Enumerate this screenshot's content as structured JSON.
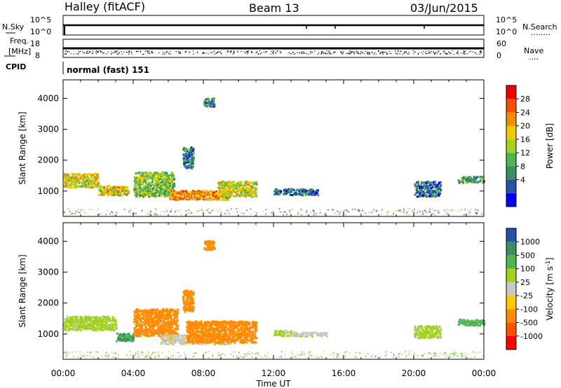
{
  "header": {
    "station": "Halley (fitACF)",
    "beam": "Beam 13",
    "date": "03/Jun/2015"
  },
  "strips": {
    "nsky_label": "N.Sky",
    "nsearch_label": "N.Search",
    "nsearch_line": "........",
    "sky_ticks": [
      "10^5",
      "10^0"
    ],
    "freq_label_1": "Freq.",
    "freq_label_2": "[MHz]",
    "freq_ticks": [
      "18",
      "8"
    ],
    "nave_label": "Nave",
    "nave_line": "....",
    "nave_ticks": [
      "60",
      "0"
    ],
    "cpid_label": "CPID",
    "cpid_text": "normal (fast) 151"
  },
  "chart_data": [
    {
      "type": "heatmap",
      "parameter": "Power",
      "ylabel": "Slant Range [km]",
      "ylim": [
        180,
        4600
      ],
      "yticks": [
        "1000",
        "2000",
        "3000",
        "4000"
      ],
      "colorbar": {
        "label": "Power [dB]",
        "ticks": [
          "28",
          "24",
          "20",
          "16",
          "12",
          "8",
          "4"
        ],
        "colors": [
          "#0000ff",
          "#2850a8",
          "#3c8c64",
          "#50b450",
          "#a0d21e",
          "#f0c800",
          "#f08c00",
          "#f05000",
          "#f00000"
        ]
      },
      "echo_regions": [
        {
          "t0": 0.0,
          "t1": 2.0,
          "r0": 1100,
          "r1": 1550,
          "power_db": 20
        },
        {
          "t0": 2.0,
          "t1": 3.7,
          "r0": 850,
          "r1": 1150,
          "power_db": 22
        },
        {
          "t0": 4.0,
          "t1": 6.3,
          "r0": 800,
          "r1": 1600,
          "power_db": 16
        },
        {
          "t0": 6.0,
          "t1": 9.5,
          "r0": 700,
          "r1": 1000,
          "power_db": 26
        },
        {
          "t0": 8.8,
          "t1": 11.0,
          "r0": 800,
          "r1": 1300,
          "power_db": 20
        },
        {
          "t0": 6.8,
          "t1": 7.4,
          "r0": 1700,
          "r1": 2400,
          "power_db": 10
        },
        {
          "t0": 8.0,
          "t1": 8.6,
          "r0": 3700,
          "r1": 4000,
          "power_db": 10
        },
        {
          "t0": 12.0,
          "t1": 14.5,
          "r0": 850,
          "r1": 1050,
          "power_db": 8
        },
        {
          "t0": 20.0,
          "t1": 21.5,
          "r0": 800,
          "r1": 1300,
          "power_db": 8
        },
        {
          "t0": 22.5,
          "t1": 24.0,
          "r0": 1250,
          "r1": 1450,
          "power_db": 12
        }
      ]
    },
    {
      "type": "heatmap",
      "parameter": "Velocity",
      "ylabel": "Slant Range [km]",
      "ylim": [
        180,
        4600
      ],
      "yticks": [
        "1000",
        "2000",
        "3000",
        "4000"
      ],
      "colorbar": {
        "label": "Velocity [m s^-1]",
        "ticks": [
          "1000",
          "500",
          "100",
          "25",
          "-25",
          "-100",
          "-500",
          "-1000"
        ],
        "colors": [
          "#ff0000",
          "#ff5000",
          "#ff8c00",
          "#ffc800",
          "#c8c8c8",
          "#a0d21e",
          "#50b450",
          "#3c8c64",
          "#2850a8"
        ]
      },
      "xlabel": "Time UT",
      "xticks": [
        "00:00",
        "04:00",
        "08:00",
        "12:00",
        "16:00",
        "20:00",
        "00:00"
      ],
      "xlim_hours": [
        0,
        24
      ],
      "echo_regions": [
        {
          "t0": 0.0,
          "t1": 3.0,
          "r0": 1100,
          "r1": 1550,
          "velocity": 50
        },
        {
          "t0": 3.0,
          "t1": 4.0,
          "r0": 750,
          "r1": 1000,
          "velocity": 500
        },
        {
          "t0": 4.0,
          "t1": 6.5,
          "r0": 900,
          "r1": 1800,
          "velocity": -300
        },
        {
          "t0": 5.5,
          "t1": 9.5,
          "r0": 650,
          "r1": 950,
          "velocity": 0
        },
        {
          "t0": 7.0,
          "t1": 11.0,
          "r0": 700,
          "r1": 1400,
          "velocity": -300
        },
        {
          "t0": 6.8,
          "t1": 7.4,
          "r0": 1700,
          "r1": 2400,
          "velocity": -300
        },
        {
          "t0": 8.0,
          "t1": 8.6,
          "r0": 3700,
          "r1": 4000,
          "velocity": -300
        },
        {
          "t0": 12.0,
          "t1": 13.0,
          "r0": 900,
          "r1": 1100,
          "velocity": 50
        },
        {
          "t0": 13.0,
          "t1": 15.0,
          "r0": 900,
          "r1": 1050,
          "velocity": 0
        },
        {
          "t0": 20.0,
          "t1": 21.5,
          "r0": 850,
          "r1": 1250,
          "velocity": 50
        },
        {
          "t0": 22.5,
          "t1": 24.0,
          "r0": 1250,
          "r1": 1450,
          "velocity": 300
        }
      ]
    }
  ]
}
